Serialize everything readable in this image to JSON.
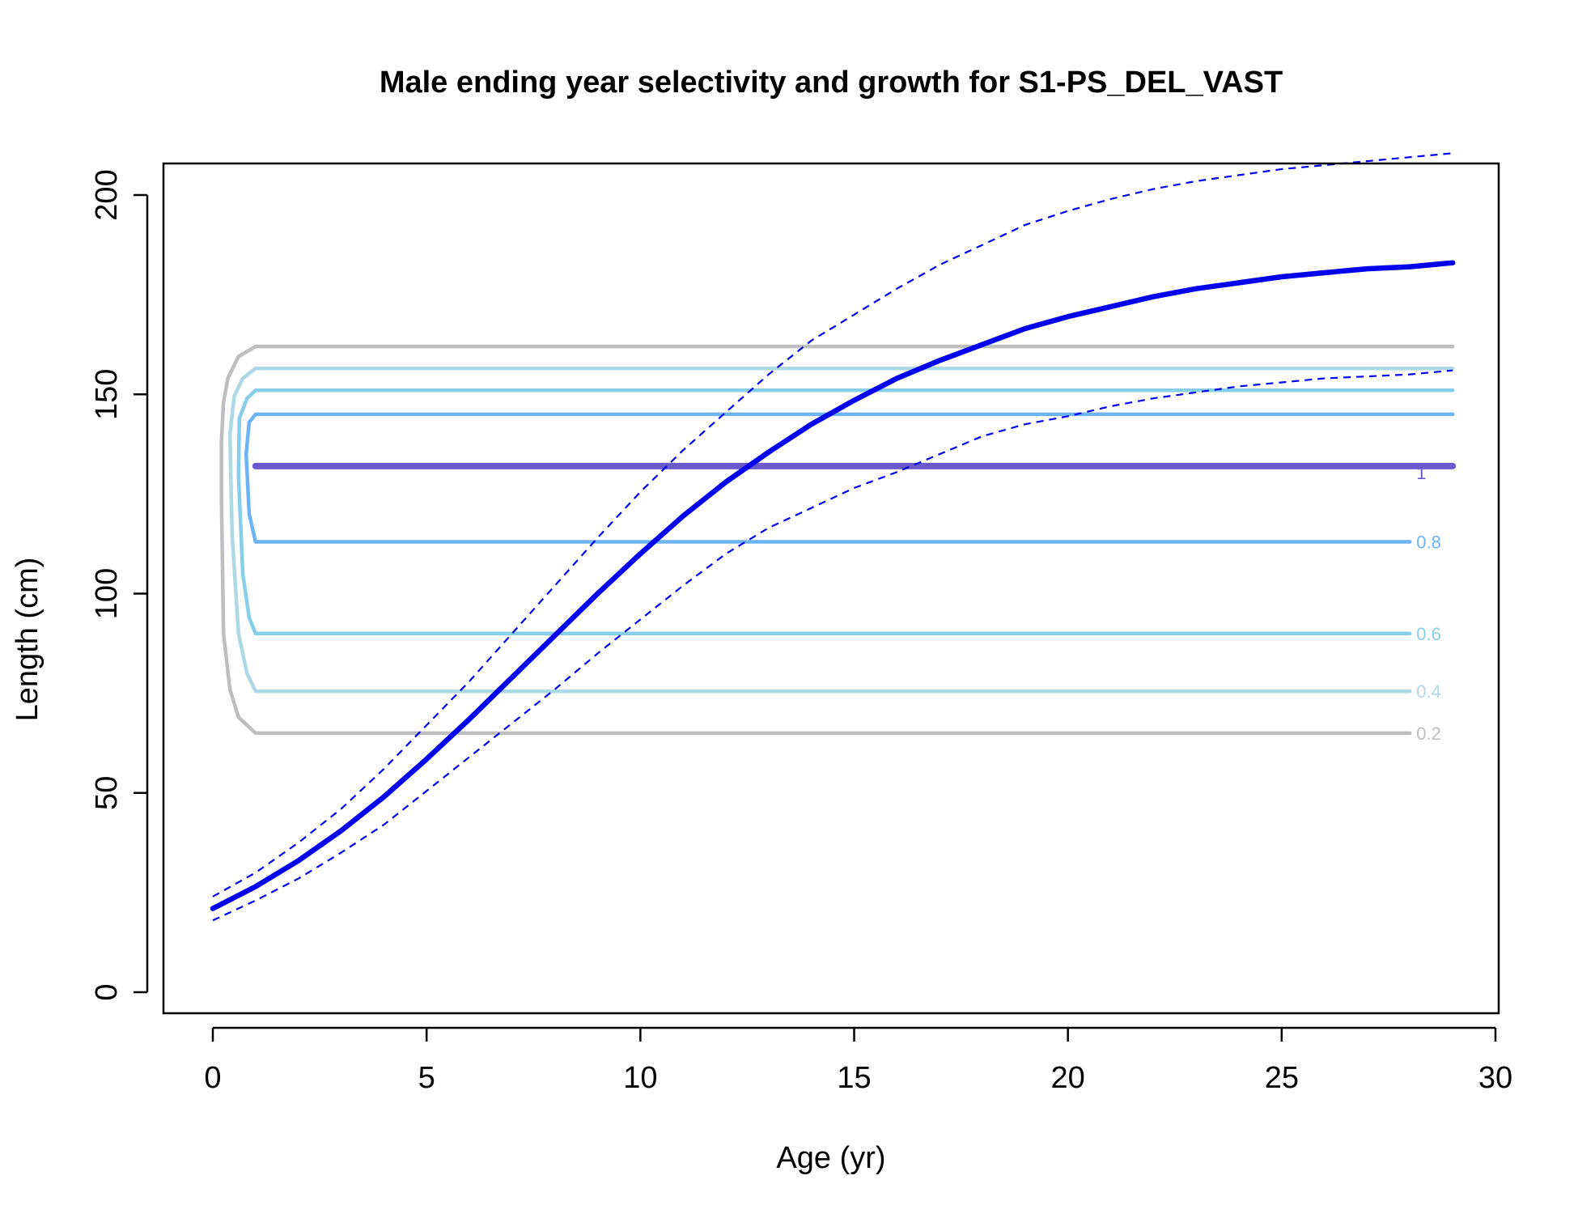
{
  "chart_data": {
    "type": "line",
    "title": "Male ending year selectivity and growth for S1-PS_DEL_VAST",
    "xlabel": "Age (yr)",
    "ylabel": "Length (cm)",
    "xlim": [
      0,
      30
    ],
    "ylim": [
      0,
      200
    ],
    "x_ticks": [
      0,
      5,
      10,
      15,
      20,
      25,
      30
    ],
    "y_ticks": [
      0,
      50,
      100,
      150,
      200
    ],
    "grid": false,
    "legend": "none",
    "contour_labels": [
      "0.2",
      "0.4",
      "0.6",
      "0.8",
      "1"
    ],
    "contours": [
      {
        "level": "0.2",
        "color": "#bebebe",
        "bottom": 65,
        "top": 162,
        "points": [
          [
            29,
            162
          ],
          [
            1,
            162
          ],
          [
            0.6,
            159.5
          ],
          [
            0.35,
            154
          ],
          [
            0.25,
            148
          ],
          [
            0.2,
            138
          ],
          [
            0.2,
            125
          ],
          [
            0.25,
            90
          ],
          [
            0.4,
            76
          ],
          [
            0.6,
            69
          ],
          [
            1,
            65
          ],
          [
            28,
            65
          ]
        ]
      },
      {
        "level": "0.4",
        "color": "#add8e6",
        "bottom": 75.5,
        "top": 156.5,
        "points": [
          [
            29,
            156.5
          ],
          [
            1,
            156.5
          ],
          [
            0.7,
            154
          ],
          [
            0.5,
            149.5
          ],
          [
            0.4,
            140
          ],
          [
            0.45,
            115
          ],
          [
            0.6,
            90
          ],
          [
            0.8,
            80
          ],
          [
            1,
            75.5
          ],
          [
            28,
            75.5
          ]
        ]
      },
      {
        "level": "0.6",
        "color": "#87ceeb",
        "bottom": 90,
        "top": 151,
        "points": [
          [
            29,
            151
          ],
          [
            1,
            151
          ],
          [
            0.8,
            149
          ],
          [
            0.62,
            144
          ],
          [
            0.6,
            130
          ],
          [
            0.7,
            105
          ],
          [
            0.85,
            94
          ],
          [
            1,
            90
          ],
          [
            28,
            90
          ]
        ]
      },
      {
        "level": "0.8",
        "color": "#6cb4f5",
        "bottom": 113,
        "top": 145,
        "points": [
          [
            29,
            145
          ],
          [
            1,
            145
          ],
          [
            0.85,
            143
          ],
          [
            0.78,
            135
          ],
          [
            0.85,
            120
          ],
          [
            1,
            113
          ],
          [
            28,
            113
          ]
        ]
      },
      {
        "level": "1",
        "color": "#6a5acd",
        "points": [
          [
            1,
            132
          ],
          [
            29,
            132
          ]
        ]
      }
    ],
    "series": [
      {
        "name": "",
        "style": "solid",
        "color": "#0000ee",
        "x": [
          0,
          1,
          2,
          3,
          4,
          5,
          6,
          7,
          8,
          9,
          10,
          11,
          12,
          13,
          14,
          15,
          16,
          17,
          18,
          19,
          20,
          21,
          22,
          23,
          24,
          25,
          26,
          27,
          28,
          29
        ],
        "y": [
          21,
          26.5,
          33,
          40.5,
          49,
          58.5,
          68.5,
          79,
          89.5,
          100,
          110,
          119.5,
          128,
          135.5,
          142.5,
          148.5,
          154,
          158.5,
          162.5,
          166.5,
          169.5,
          172,
          174.5,
          176.5,
          178,
          179.5,
          180.5,
          181.5,
          182,
          183
        ]
      },
      {
        "name": "",
        "style": "dashed",
        "color": "#0000ee",
        "x": [
          0,
          1,
          2,
          3,
          4,
          5,
          6,
          7,
          8,
          9,
          10,
          11,
          12,
          13,
          14,
          15,
          16,
          17,
          18,
          19,
          20,
          21,
          22,
          23,
          24,
          25,
          26,
          27,
          28,
          29
        ],
        "y": [
          24,
          30,
          37.5,
          46,
          56,
          67,
          78,
          90,
          102,
          114,
          125.5,
          136,
          145.5,
          155,
          163.5,
          170,
          176.5,
          182.5,
          187.5,
          192.5,
          196,
          199,
          201.5,
          203.5,
          205,
          206.5,
          207.5,
          208.5,
          209.5,
          210.5
        ]
      },
      {
        "name": "",
        "style": "dashed",
        "color": "#0000ee",
        "x": [
          0,
          1,
          2,
          3,
          4,
          5,
          6,
          7,
          8,
          9,
          10,
          11,
          12,
          13,
          14,
          15,
          16,
          17,
          18,
          19,
          20,
          21,
          22,
          23,
          24,
          25,
          26,
          27,
          28,
          29
        ],
        "y": [
          18,
          23,
          28.5,
          35,
          42,
          50.5,
          59,
          67.5,
          76,
          85,
          93.5,
          102,
          110,
          116.5,
          121.5,
          126.5,
          130.5,
          135,
          139.5,
          142.5,
          144.5,
          147,
          149,
          150.5,
          152,
          153,
          154,
          154.5,
          155,
          156
        ]
      }
    ]
  }
}
